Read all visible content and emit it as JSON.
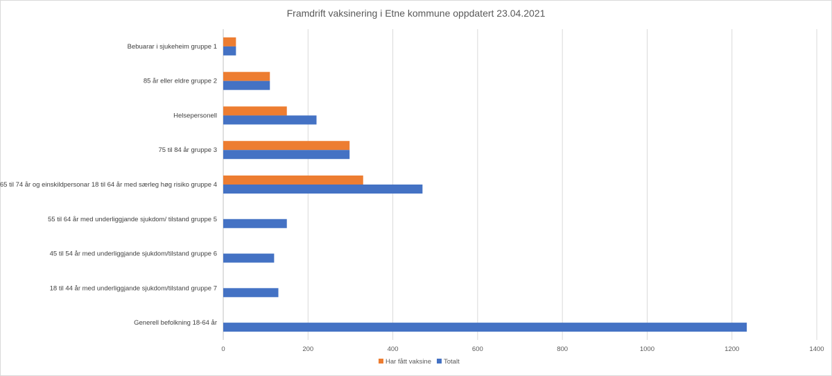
{
  "chart_data": {
    "type": "bar",
    "orientation": "horizontal",
    "title": "Framdrift vaksinering i Etne kommune oppdatert 23.04.2021",
    "categories": [
      "Bebuarar i sjukeheim gruppe 1",
      "85 år eller eldre gruppe 2",
      "Helsepersonell",
      "75 til 84 år gruppe 3",
      "65 til 74 år og einskildpersonar 18 til 64 år med særleg høg risiko gruppe 4",
      "55 til 64 år med underliggjande sjukdom/ tilstand gruppe 5",
      "45 til 54 år med underliggjande sjukdom/tilstand gruppe 6",
      "18 til 44 år med underliggjande sjukdom/tilstand gruppe 7",
      "Generell befolkning 18-64 år"
    ],
    "series": [
      {
        "name": "Har fått vaksine",
        "color": "#ED7D31",
        "values": [
          30,
          110,
          150,
          298,
          330,
          null,
          null,
          null,
          null
        ]
      },
      {
        "name": "Totalt",
        "color": "#4472C4",
        "values": [
          30,
          110,
          220,
          298,
          470,
          150,
          120,
          130,
          1235
        ]
      }
    ],
    "xlim": [
      0,
      1400
    ],
    "xticks": [
      "0",
      "200",
      "400",
      "600",
      "800",
      "1000",
      "1200",
      "1400"
    ],
    "grid": true,
    "legend_position": "bottom"
  }
}
